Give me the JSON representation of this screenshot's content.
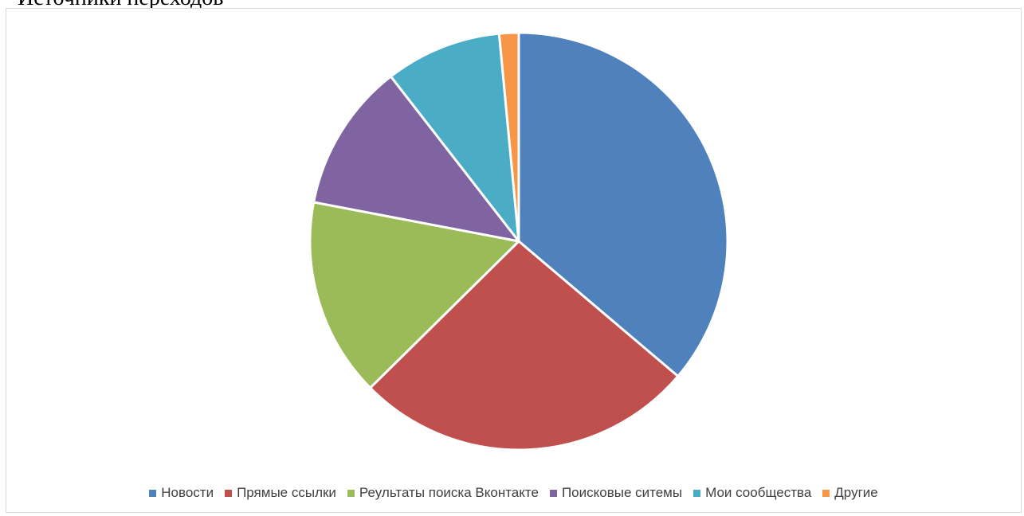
{
  "document": {
    "title": "Источники переходов"
  },
  "chart_data": {
    "type": "pie",
    "title": "",
    "legend_position": "bottom",
    "categories": [
      "Новости",
      "Прямые ссылки",
      "Реультаты поиска Вконтакте",
      "Поисковые ситемы",
      "Мои сообщества",
      "Другие"
    ],
    "values": [
      36.2,
      26.4,
      15.4,
      11.5,
      9.0,
      1.5
    ],
    "colors": [
      "#4f81bd",
      "#c0504d",
      "#9bbb59",
      "#8064a2",
      "#4bacc6",
      "#f79646"
    ]
  }
}
